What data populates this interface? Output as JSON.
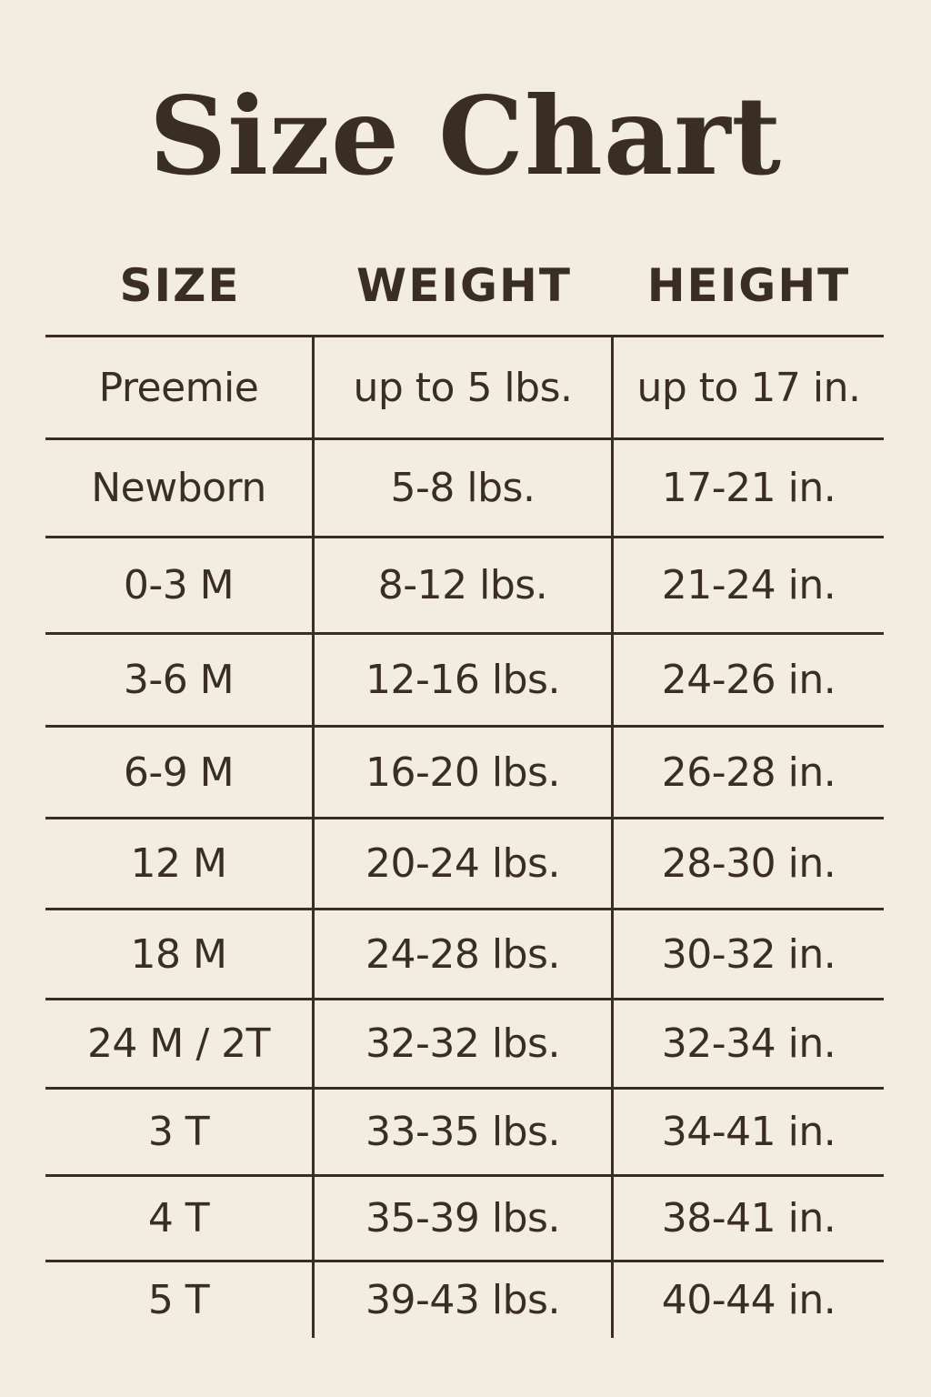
{
  "title": "Size Chart",
  "colors": {
    "background": "#f3ece1",
    "text": "#3a2d23"
  },
  "headers": [
    "SIZE",
    "WEIGHT",
    "HEIGHT"
  ],
  "rows": [
    [
      "Preemie",
      "up to 5 lbs.",
      "up to 17 in."
    ],
    [
      "Newborn",
      "5-8 lbs.",
      "17-21 in."
    ],
    [
      "0-3 M",
      "8-12 lbs.",
      "21-24 in."
    ],
    [
      "3-6 M",
      "12-16 lbs.",
      "24-26 in."
    ],
    [
      "6-9 M",
      "16-20 lbs.",
      "26-28 in."
    ],
    [
      "12 M",
      "20-24 lbs.",
      "28-30 in."
    ],
    [
      "18 M",
      "24-28 lbs.",
      "30-32 in."
    ],
    [
      "24 M / 2T",
      "32-32 lbs.",
      "32-34 in."
    ],
    [
      "3 T",
      "33-35 lbs.",
      "34-41 in."
    ],
    [
      "4 T",
      "35-39 lbs.",
      "38-41 in."
    ],
    [
      "5 T",
      "39-43 lbs.",
      "40-44 in."
    ]
  ]
}
